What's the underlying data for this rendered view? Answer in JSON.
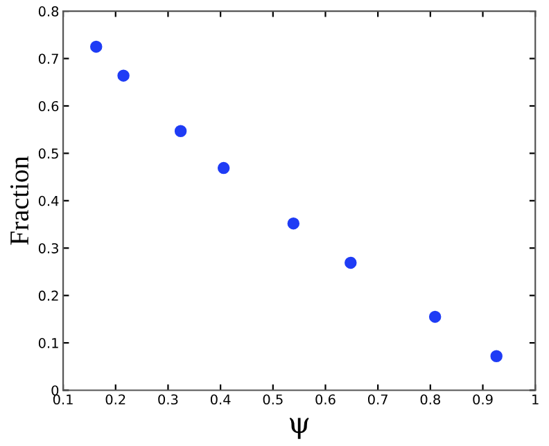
{
  "chart_data": {
    "type": "scatter",
    "xlabel": "ψ",
    "ylabel": "Fraction",
    "x": [
      0.163,
      0.215,
      0.324,
      0.406,
      0.539,
      0.648,
      0.809,
      0.926
    ],
    "series": [
      {
        "color": "#1f3cf5",
        "values": [
          0.725,
          0.664,
          0.547,
          0.469,
          0.352,
          0.269,
          0.155,
          0.072
        ]
      }
    ],
    "xlim": [
      0.1,
      1
    ],
    "ylim": [
      0,
      0.8
    ],
    "xticks": [
      0.1,
      0.2,
      0.3,
      0.4,
      0.5,
      0.6,
      0.7,
      0.8,
      0.9,
      1
    ],
    "yticks": [
      0,
      0.1,
      0.2,
      0.3,
      0.4,
      0.5,
      0.6,
      0.7,
      0.8
    ],
    "marker": "circle",
    "grid": false,
    "legend": false
  }
}
